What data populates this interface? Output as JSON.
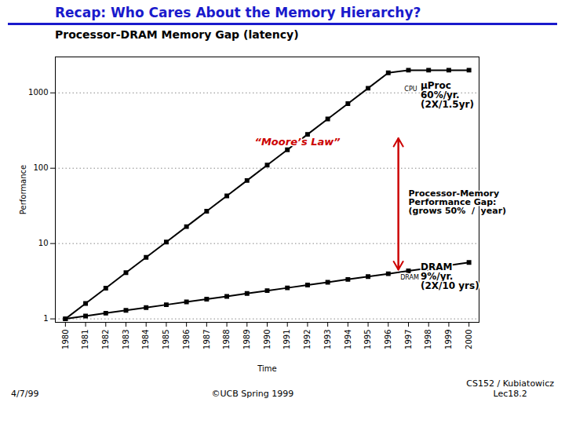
{
  "chart_data": {
    "type": "line",
    "title": "Recap: Who Cares About the Memory Hierarchy?",
    "title_color": "#1a1acc",
    "subtitle": "Processor-DRAM Memory Gap (latency)",
    "subtitle_color": "#000000",
    "xlabel": "Time",
    "ylabel": "Performance",
    "xlabel_sub": "©UCB Spring 1999",
    "footer_left": "4/7/99",
    "footer_right": "CS152 / Kubiatowicz\nLec18.2",
    "x": [
      1980,
      1981,
      1982,
      1983,
      1984,
      1985,
      1986,
      1987,
      1988,
      1989,
      1990,
      1991,
      1992,
      1993,
      1994,
      1995,
      1996,
      1997,
      1998,
      1999,
      2000
    ],
    "series": [
      {
        "name": "CPU",
        "color": "#000000",
        "marker": "square",
        "values": [
          1.0,
          1.6,
          2.56,
          4.1,
          6.55,
          10.49,
          16.78,
          26.84,
          42.95,
          68.72,
          109.95,
          175.92,
          281.47,
          450.35,
          720.56,
          1152.9,
          1844.6,
          2000.0,
          2000.0,
          2000.0,
          2000.0
        ]
      },
      {
        "name": "DRAM",
        "color": "#000000",
        "marker": "square",
        "values": [
          1.0,
          1.09,
          1.19,
          1.3,
          1.41,
          1.54,
          1.68,
          1.83,
          1.99,
          2.17,
          2.37,
          2.58,
          2.81,
          3.06,
          3.34,
          3.64,
          3.97,
          4.33,
          4.72,
          5.14,
          5.6
        ]
      }
    ],
    "xlim": [
      1979.5,
      2000.5
    ],
    "xticks": [
      1980,
      1981,
      1982,
      1983,
      1984,
      1985,
      1986,
      1987,
      1988,
      1989,
      1990,
      1991,
      1992,
      1993,
      1994,
      1995,
      1996,
      1997,
      1998,
      1999,
      2000
    ],
    "ylim": [
      0.9,
      3000
    ],
    "yticks": [
      1,
      10,
      100,
      1000
    ],
    "log": "y",
    "grid": true,
    "annotations": [
      {
        "text": "“Moore’s Law”",
        "x": 1991.5,
        "y": 200,
        "color": "#cc0000"
      },
      {
        "text": "Processor-Memory\nPerformance Gap:\n(grows 50%  /  year)",
        "x": 1997.0,
        "y": 35,
        "color": "#000000"
      },
      {
        "text": "CPU",
        "x": 1996.8,
        "y": 1050,
        "color": "#000000"
      },
      {
        "text": "μProc\n60%/yr.\n(2X/1.5yr)",
        "x": 1997.6,
        "y": 1400,
        "color": "#000000"
      },
      {
        "text": "DRAM",
        "x": 1996.6,
        "y": 3.8,
        "color": "#000000"
      },
      {
        "text": "DRAM\n9%/yr.\n(2X/10 yrs)",
        "x": 1997.6,
        "y": 5.5,
        "color": "#000000"
      }
    ],
    "arrows": [
      {
        "x": 1996.5,
        "y1": 250,
        "y2": 4.5,
        "color": "#cc0000"
      }
    ]
  }
}
